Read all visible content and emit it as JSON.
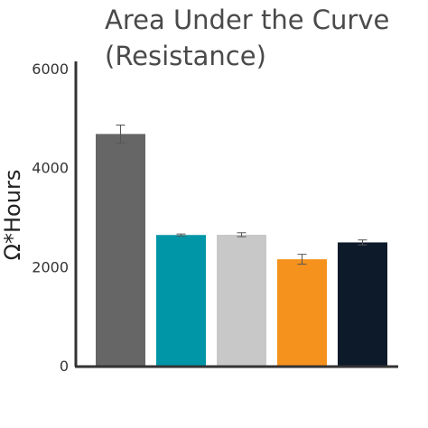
{
  "chart_data": {
    "type": "bar",
    "title_lines": [
      "Area Under the Curve",
      "(Resistance)"
    ],
    "xlabel": "",
    "ylabel": "Ω*Hours",
    "ylim": [
      0,
      6000
    ],
    "yticks": [
      0,
      2000,
      4000,
      6000
    ],
    "yticks_labels": [
      "0",
      "2000",
      "4000",
      "6000"
    ],
    "grid": false,
    "legend": "none",
    "categories": [
      "",
      "",
      "",
      "",
      ""
    ],
    "values": [
      4680,
      2640,
      2645,
      2150,
      2490
    ],
    "errors": [
      180,
      20,
      40,
      100,
      50
    ],
    "colors": [
      "#666666",
      "#0096a8",
      "#c8c8c8",
      "#f5921e",
      "#0c1a2a"
    ]
  }
}
